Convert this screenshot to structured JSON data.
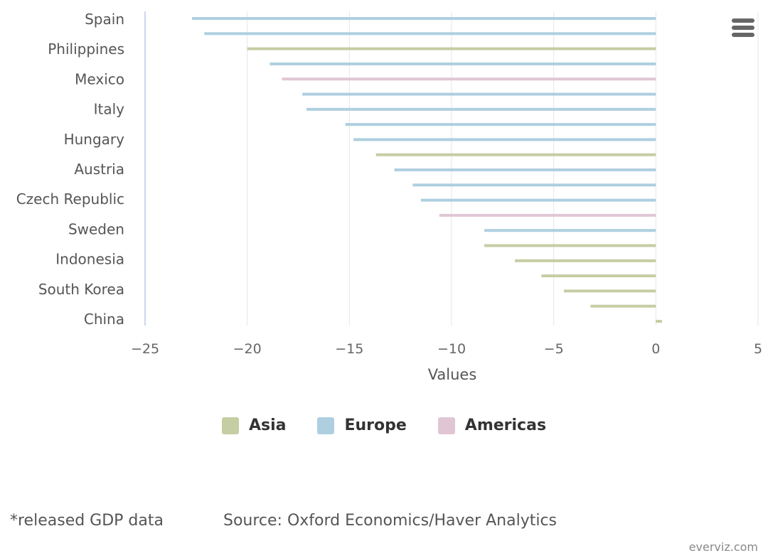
{
  "chart_data": {
    "type": "bar",
    "orientation": "horizontal",
    "title": "",
    "xlabel": "Values",
    "ylabel": "",
    "xlim": [
      -25,
      5
    ],
    "x_ticks": [
      -25,
      -20,
      -15,
      -10,
      -5,
      0,
      5
    ],
    "x_tick_labels": [
      "−25",
      "−20",
      "−15",
      "−10",
      "−5",
      "0",
      "5"
    ],
    "categories": [
      "Spain",
      "Philippines",
      "Mexico",
      "Italy",
      "Hungary",
      "Austria",
      "Czech Republic",
      "Sweden",
      "Indonesia",
      "South Korea",
      "China"
    ],
    "series_colors": {
      "Asia": "#c5cda3",
      "Europe": "#aecfe0",
      "Americas": "#e0c6d4"
    },
    "bars": [
      {
        "region": "Europe",
        "value": -22.7
      },
      {
        "region": "Europe",
        "value": -22.1
      },
      {
        "region": "Asia",
        "value": -20.0
      },
      {
        "region": "Europe",
        "value": -18.9
      },
      {
        "region": "Americas",
        "value": -18.3
      },
      {
        "region": "Europe",
        "value": -17.3
      },
      {
        "region": "Europe",
        "value": -17.1
      },
      {
        "region": "Europe",
        "value": -15.2
      },
      {
        "region": "Europe",
        "value": -14.8
      },
      {
        "region": "Asia",
        "value": -13.7
      },
      {
        "region": "Europe",
        "value": -12.8
      },
      {
        "region": "Europe",
        "value": -11.9
      },
      {
        "region": "Europe",
        "value": -11.5
      },
      {
        "region": "Americas",
        "value": -10.6
      },
      {
        "region": "Europe",
        "value": -8.4
      },
      {
        "region": "Asia",
        "value": -8.4
      },
      {
        "region": "Asia",
        "value": -6.9
      },
      {
        "region": "Asia",
        "value": -5.6
      },
      {
        "region": "Asia",
        "value": -4.5
      },
      {
        "region": "Asia",
        "value": -3.2
      },
      {
        "region": "Asia",
        "value": 0.3
      }
    ],
    "legend": [
      "Asia",
      "Europe",
      "Americas"
    ],
    "legend_position": "bottom-center",
    "grid": true
  },
  "footnote": "*released GDP data",
  "source": "Source: Oxford Economics/Haver Analytics",
  "credit": "everviz.com"
}
